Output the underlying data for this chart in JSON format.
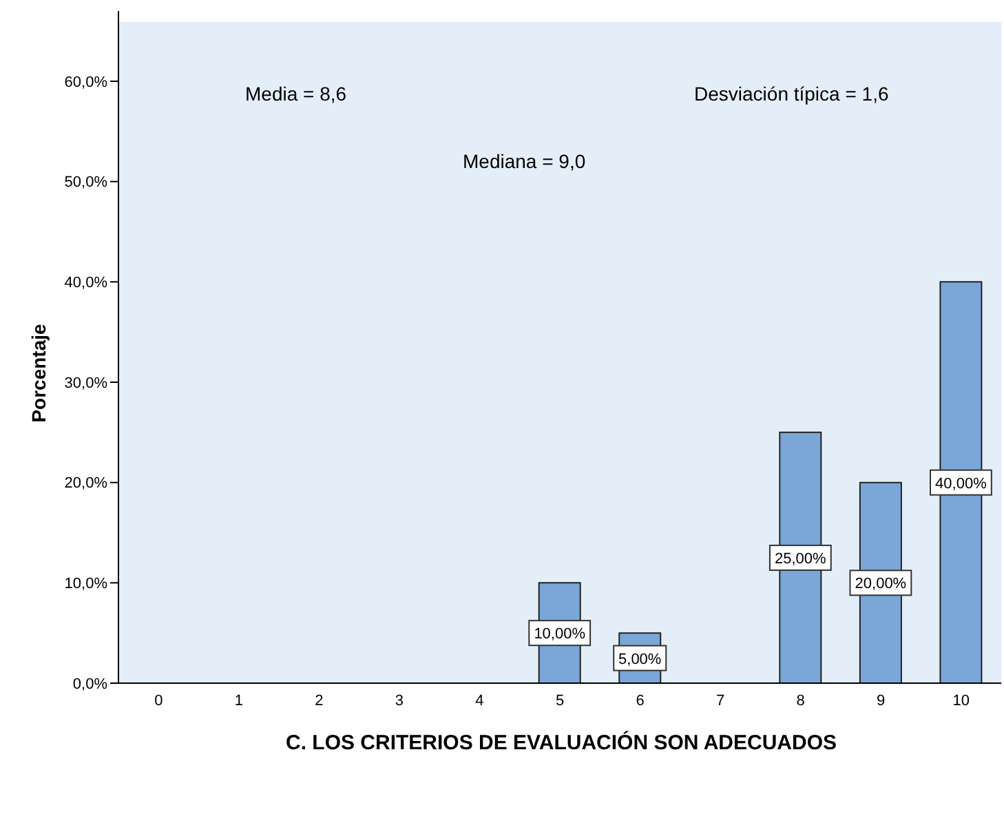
{
  "chart_data": {
    "type": "bar",
    "xlabel": "C. LOS CRITERIOS DE EVALUACIÓN SON ADECUADOS",
    "ylabel": "Porcentaje",
    "categories": [
      "0",
      "1",
      "2",
      "3",
      "4",
      "5",
      "6",
      "7",
      "8",
      "9",
      "10"
    ],
    "values": [
      null,
      null,
      null,
      null,
      null,
      10,
      5,
      null,
      25,
      20,
      40
    ],
    "value_labels": [
      null,
      null,
      null,
      null,
      null,
      "10,00%",
      "5,00%",
      null,
      "25,00%",
      "20,00%",
      "40,00%"
    ],
    "color": "#7ba7d8",
    "ylim": [
      0,
      67
    ],
    "yticks": [
      {
        "value": 0,
        "label": "0,0%"
      },
      {
        "value": 10,
        "label": "10,0%"
      },
      {
        "value": 20,
        "label": "20,0%"
      },
      {
        "value": 30,
        "label": "30,0%"
      },
      {
        "value": 40,
        "label": "40,0%"
      },
      {
        "value": 50,
        "label": "50,0%"
      },
      {
        "value": 60,
        "label": "60,0%"
      }
    ],
    "grid": false,
    "annotations": [
      "Media = 8,6",
      "Mediana = 9,0",
      "Desviación típica = 1,6"
    ]
  }
}
